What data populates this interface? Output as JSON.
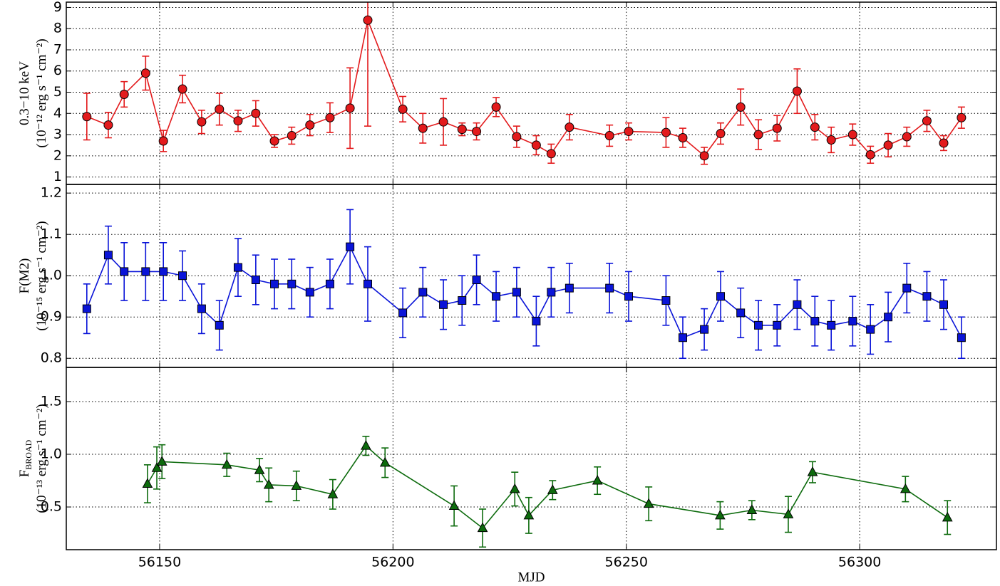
{
  "chart_data": [
    {
      "type": "line",
      "color": "#e31a1c",
      "marker": "circle",
      "ylabel": {
        "lines": [
          "0.3−10 keV",
          "(10⁻¹² erg s⁻¹ cm⁻²)"
        ]
      },
      "x": [
        56134.4,
        56139.0,
        56142.4,
        56147.0,
        56150.8,
        56154.9,
        56159.0,
        56162.8,
        56166.8,
        56170.6,
        56174.6,
        56178.3,
        56182.2,
        56186.5,
        56190.8,
        56194.6,
        56202.1,
        56206.4,
        56210.8,
        56214.8,
        56217.9,
        56222.1,
        56226.5,
        56230.7,
        56233.9,
        56237.8,
        56246.4,
        56250.5,
        56258.5,
        56262.1,
        56266.7,
        56270.2,
        56274.5,
        56278.3,
        56282.3,
        56286.6,
        56290.4,
        56293.9,
        56298.5,
        56302.3,
        56306.1,
        56310.1,
        56314.4,
        56318.0,
        56321.8
      ],
      "values": [
        3.85,
        3.45,
        4.9,
        5.9,
        2.7,
        5.15,
        3.6,
        4.2,
        3.65,
        4.0,
        2.7,
        2.95,
        3.45,
        3.8,
        4.25,
        8.4,
        4.2,
        3.3,
        3.6,
        3.25,
        3.15,
        4.3,
        2.9,
        2.5,
        2.1,
        3.35,
        2.95,
        3.15,
        3.1,
        2.85,
        2.0,
        3.05,
        4.3,
        3.0,
        3.3,
        5.05,
        3.35,
        2.75,
        3.0,
        2.05,
        2.5,
        2.9,
        3.65,
        2.6,
        3.8
      ],
      "errors": [
        1.1,
        0.6,
        0.6,
        0.8,
        0.5,
        0.65,
        0.55,
        0.75,
        0.5,
        0.6,
        0.3,
        0.4,
        0.5,
        0.7,
        1.9,
        5.0,
        0.6,
        0.7,
        1.1,
        0.3,
        0.4,
        0.45,
        0.5,
        0.45,
        0.45,
        0.6,
        0.5,
        0.4,
        0.7,
        0.45,
        0.4,
        0.5,
        0.85,
        0.7,
        0.6,
        1.05,
        0.6,
        0.6,
        0.5,
        0.4,
        0.55,
        0.45,
        0.5,
        0.35,
        0.5
      ],
      "xlim": [
        56130,
        56329.3
      ],
      "xticks": [
        56150,
        56200,
        56250,
        56300
      ],
      "ylim": [
        0.65,
        9.25
      ],
      "yticks": [
        1,
        2,
        3,
        4,
        5,
        6,
        7,
        8,
        9
      ],
      "grid": true
    },
    {
      "type": "line",
      "color": "#0a14d8",
      "marker": "square",
      "ylabel": {
        "main": "F(M2)",
        "lines": [
          "(10⁻¹⁵ erg s⁻¹ cm⁻²)"
        ]
      },
      "x": [
        56134.4,
        56139.0,
        56142.4,
        56147.0,
        56150.8,
        56154.9,
        56159.0,
        56162.8,
        56166.8,
        56170.6,
        56174.6,
        56178.3,
        56182.2,
        56186.5,
        56190.8,
        56194.6,
        56202.1,
        56206.4,
        56210.8,
        56214.8,
        56217.9,
        56222.1,
        56226.5,
        56230.7,
        56233.9,
        56237.8,
        56246.4,
        56250.5,
        56258.5,
        56262.1,
        56266.7,
        56270.2,
        56274.5,
        56278.3,
        56282.3,
        56286.6,
        56290.4,
        56293.9,
        56298.5,
        56302.3,
        56306.1,
        56310.1,
        56314.4,
        56318.0,
        56321.8
      ],
      "values": [
        0.92,
        1.05,
        1.01,
        1.01,
        1.01,
        1.0,
        0.92,
        0.88,
        1.02,
        0.99,
        0.98,
        0.98,
        0.96,
        0.98,
        1.07,
        0.98,
        0.91,
        0.96,
        0.93,
        0.94,
        0.99,
        0.95,
        0.96,
        0.89,
        0.96,
        0.97,
        0.97,
        0.95,
        0.94,
        0.85,
        0.87,
        0.95,
        0.91,
        0.88,
        0.88,
        0.93,
        0.89,
        0.88,
        0.89,
        0.87,
        0.9,
        0.97,
        0.95,
        0.93,
        0.85
      ],
      "errors": [
        0.06,
        0.07,
        0.07,
        0.07,
        0.07,
        0.06,
        0.06,
        0.06,
        0.07,
        0.06,
        0.06,
        0.06,
        0.06,
        0.06,
        0.09,
        0.09,
        0.06,
        0.06,
        0.06,
        0.06,
        0.06,
        0.06,
        0.06,
        0.06,
        0.06,
        0.06,
        0.06,
        0.06,
        0.06,
        0.05,
        0.05,
        0.06,
        0.06,
        0.06,
        0.05,
        0.06,
        0.06,
        0.06,
        0.06,
        0.06,
        0.06,
        0.06,
        0.06,
        0.06,
        0.05
      ],
      "xlim": [
        56130,
        56329.3
      ],
      "xticks": [
        56150,
        56200,
        56250,
        56300
      ],
      "ylim": [
        0.778,
        1.221
      ],
      "yticks": [
        0.8,
        0.9,
        {
          "value": 1.0,
          "label": "1.0"
        },
        1.1,
        1.2
      ],
      "grid": true
    },
    {
      "type": "line",
      "color": "#0d6b0d",
      "marker": "triangle",
      "ylabel": {
        "main": "F",
        "sub": "BROAD",
        "lines": [
          "(10⁻¹³ erg s⁻¹ cm⁻²)"
        ]
      },
      "x": [
        56147.4,
        56149.4,
        56150.5,
        56164.4,
        56171.4,
        56173.4,
        56179.3,
        56187.1,
        56194.2,
        56198.3,
        56213.1,
        56219.2,
        56226.1,
        56229.1,
        56234.2,
        56243.8,
        56254.8,
        56270.1,
        56276.9,
        56284.7,
        56289.9,
        56309.8,
        56318.8
      ],
      "values": [
        0.72,
        0.87,
        0.93,
        0.9,
        0.85,
        0.71,
        0.7,
        0.62,
        1.08,
        0.92,
        0.51,
        0.3,
        0.67,
        0.42,
        0.66,
        0.75,
        0.53,
        0.42,
        0.47,
        0.43,
        0.83,
        0.67,
        0.4
      ],
      "errors": [
        0.18,
        0.2,
        0.16,
        0.11,
        0.11,
        0.16,
        0.14,
        0.14,
        0.09,
        0.14,
        0.19,
        0.18,
        0.16,
        0.17,
        0.09,
        0.13,
        0.16,
        0.13,
        0.09,
        0.17,
        0.1,
        0.12,
        0.16
      ],
      "xlim": [
        56130,
        56329.3
      ],
      "xticks": [
        56150,
        56200,
        56250,
        56300
      ],
      "ylim": [
        0.095,
        1.824
      ],
      "yticks": [
        0.5,
        {
          "value": 1.0,
          "label": "1.0"
        },
        1.5
      ],
      "grid": true,
      "xlabel": "MJD"
    }
  ]
}
